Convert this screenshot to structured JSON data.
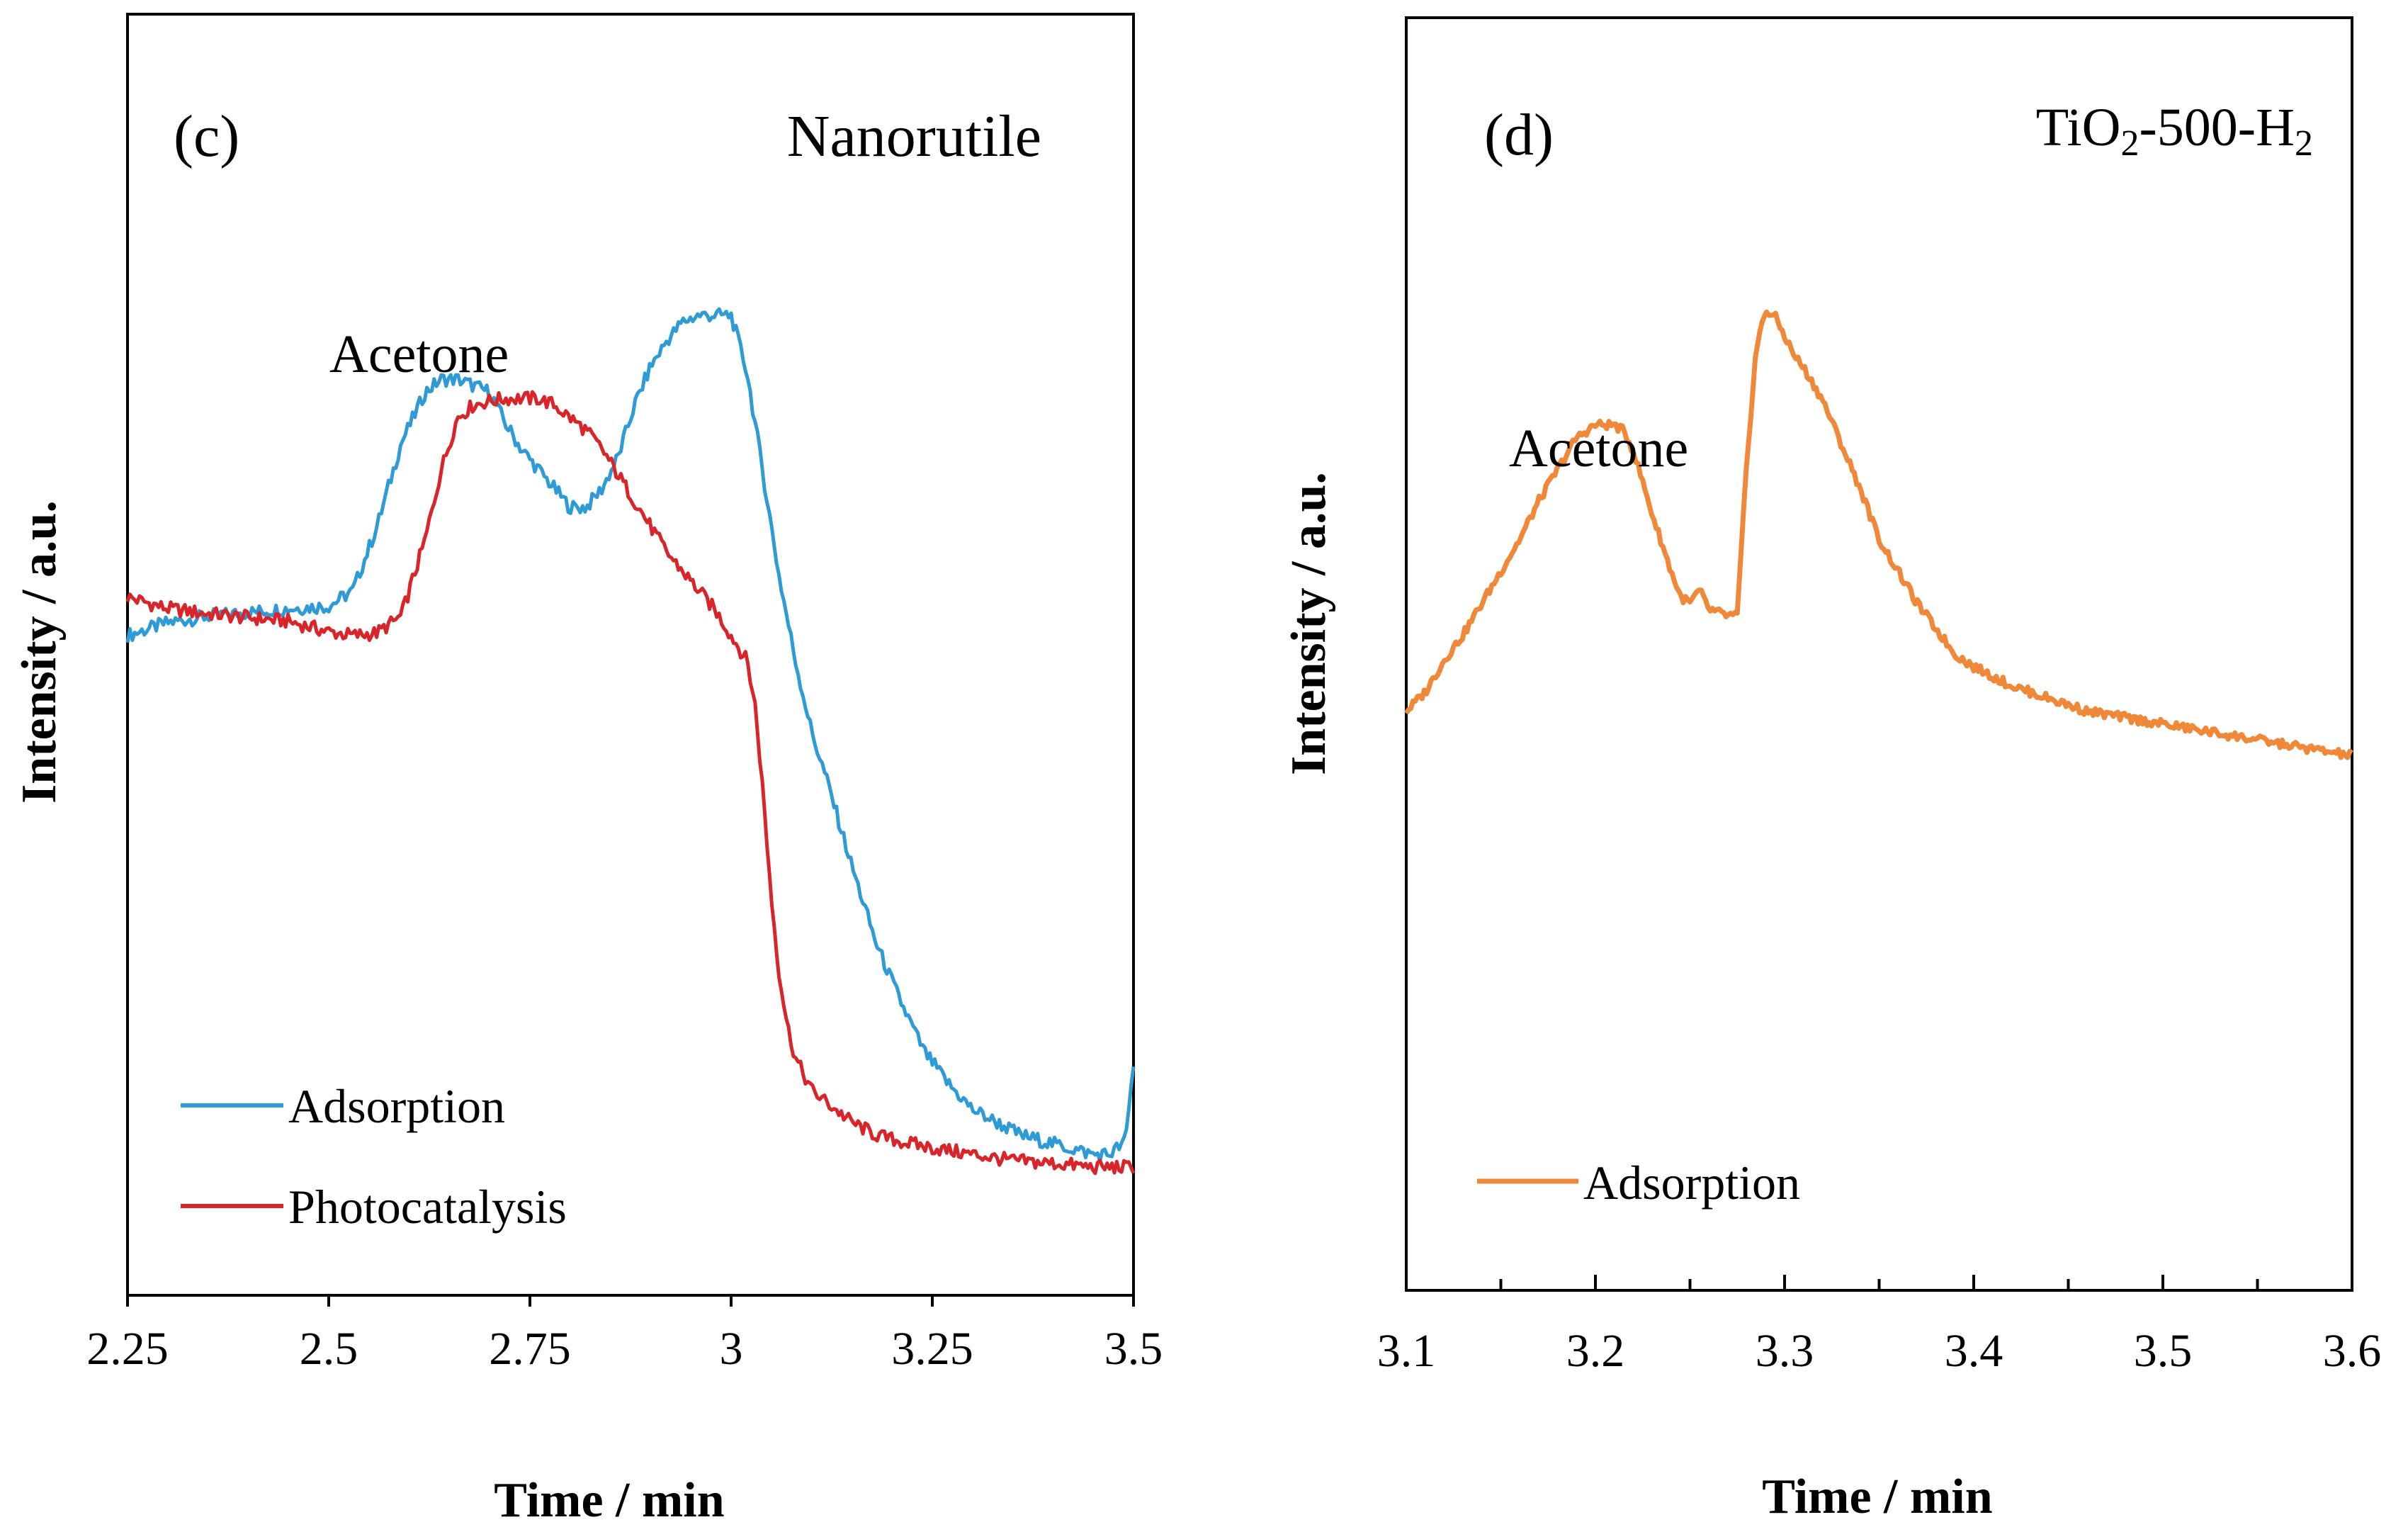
{
  "chart_data": [
    {
      "type": "line",
      "panel_label": "(c)",
      "title": "Nanorutile",
      "annotation": "Acetone",
      "xlabel": "Time / min",
      "ylabel": "Intensity / a.u.",
      "xlim": [
        2.25,
        3.5
      ],
      "ylim": [
        0,
        100
      ],
      "xticks": [
        "2.25",
        "2.5",
        "2.75",
        "3",
        "3.25",
        "3.5"
      ],
      "grid": false,
      "legend_position": "lower-left",
      "series": [
        {
          "name": "Adsorption",
          "color": "#2f9bd6",
          "x": [
            2.25,
            2.3,
            2.35,
            2.4,
            2.45,
            2.5,
            2.53,
            2.56,
            2.59,
            2.62,
            2.64,
            2.66,
            2.68,
            2.7,
            2.72,
            2.74,
            2.76,
            2.78,
            2.8,
            2.82,
            2.84,
            2.86,
            2.88,
            2.9,
            2.92,
            2.94,
            2.96,
            2.98,
            3.0,
            3.02,
            3.04,
            3.06,
            3.08,
            3.1,
            3.12,
            3.15,
            3.18,
            3.21,
            3.24,
            3.27,
            3.3,
            3.33,
            3.36,
            3.39,
            3.42,
            3.45,
            3.47,
            3.49,
            3.5
          ],
          "values": [
            51.5,
            52.5,
            53.0,
            53.3,
            53.6,
            53.8,
            55.0,
            60.0,
            66.5,
            70.5,
            71.5,
            71.5,
            71.0,
            70.5,
            68.0,
            66.0,
            64.5,
            63.0,
            61.5,
            61.5,
            63.0,
            65.5,
            69.5,
            72.5,
            74.5,
            76.0,
            76.5,
            76.5,
            76.5,
            72.0,
            64.0,
            56.0,
            49.5,
            44.0,
            40.0,
            33.5,
            27.5,
            23.0,
            19.0,
            16.5,
            14.5,
            13.5,
            12.5,
            12.0,
            11.5,
            11.0,
            11.0,
            12.0,
            18.0
          ]
        },
        {
          "name": "Photocatalysis",
          "color": "#d9242a",
          "x": [
            2.25,
            2.3,
            2.35,
            2.4,
            2.45,
            2.5,
            2.53,
            2.56,
            2.59,
            2.62,
            2.64,
            2.66,
            2.68,
            2.7,
            2.72,
            2.74,
            2.76,
            2.78,
            2.8,
            2.82,
            2.84,
            2.86,
            2.88,
            2.9,
            2.92,
            2.94,
            2.96,
            2.98,
            3.0,
            3.02,
            3.03,
            3.04,
            3.05,
            3.06,
            3.07,
            3.08,
            3.1,
            3.12,
            3.15,
            3.18,
            3.21,
            3.25,
            3.3,
            3.35,
            3.4,
            3.45,
            3.5
          ],
          "values": [
            54.5,
            53.6,
            53.2,
            52.9,
            52.6,
            51.8,
            51.5,
            51.7,
            53.0,
            59.0,
            64.5,
            68.5,
            69.5,
            69.8,
            70.0,
            70.0,
            70.0,
            69.5,
            68.5,
            67.5,
            66.0,
            64.0,
            62.0,
            60.0,
            58.0,
            56.5,
            55.0,
            53.5,
            51.5,
            49.5,
            46.0,
            39.0,
            31.0,
            25.0,
            21.0,
            18.5,
            16.0,
            15.0,
            13.5,
            12.5,
            12.0,
            11.5,
            11.0,
            10.5,
            10.3,
            10.0,
            10.0
          ]
        }
      ]
    },
    {
      "type": "line",
      "panel_label": "(d)",
      "title_parts": [
        "TiO",
        "2",
        "-500-H",
        "2"
      ],
      "annotation": "Acetone",
      "xlabel": "Time / min",
      "ylabel": "Intensity / a.u.",
      "xlim": [
        3.1,
        3.6
      ],
      "ylim": [
        0,
        100
      ],
      "xticks": [
        "3.1",
        "3.2",
        "3.3",
        "3.4",
        "3.5",
        "3.6"
      ],
      "grid": false,
      "legend_position": "lower-left",
      "series": [
        {
          "name": "Adsorption",
          "color": "#f0883a",
          "x": [
            3.1,
            3.11,
            3.12,
            3.13,
            3.14,
            3.15,
            3.16,
            3.17,
            3.18,
            3.19,
            3.2,
            3.21,
            3.215,
            3.22,
            3.23,
            3.24,
            3.245,
            3.25,
            3.255,
            3.26,
            3.27,
            3.275,
            3.28,
            3.285,
            3.29,
            3.295,
            3.3,
            3.305,
            3.31,
            3.32,
            3.33,
            3.34,
            3.35,
            3.36,
            3.37,
            3.38,
            3.39,
            3.4,
            3.42,
            3.44,
            3.46,
            3.48,
            3.5,
            3.52,
            3.54,
            3.56,
            3.58,
            3.6
          ],
          "values": [
            45.5,
            47.0,
            49.5,
            51.5,
            54.0,
            56.5,
            59.0,
            62.0,
            64.5,
            67.0,
            68.0,
            68.0,
            67.5,
            66.0,
            61.0,
            56.5,
            54.5,
            54.0,
            55.0,
            53.5,
            53.0,
            53.0,
            65.0,
            74.0,
            77.0,
            76.5,
            75.0,
            73.5,
            72.5,
            70.0,
            66.5,
            63.0,
            59.0,
            56.5,
            54.0,
            52.0,
            50.0,
            49.0,
            47.5,
            46.5,
            45.5,
            45.0,
            44.5,
            44.0,
            43.5,
            43.0,
            42.5,
            42.0
          ]
        }
      ]
    }
  ]
}
